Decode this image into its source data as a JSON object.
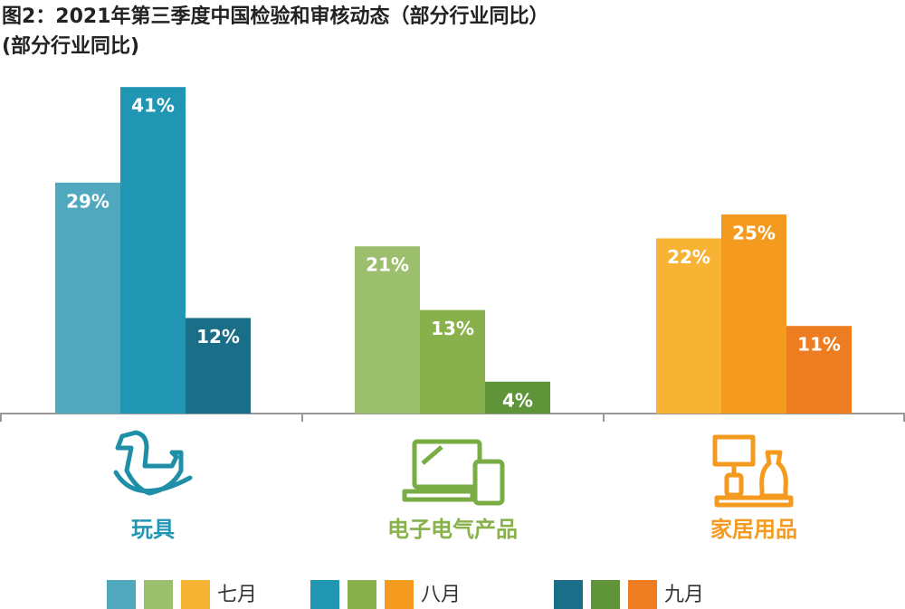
{
  "chart_data": {
    "type": "bar",
    "title": "图2：2021年第三季度中国检验和审核动态（部分行业同比）",
    "subtitle": "(部分行业同比)",
    "categories": [
      "玩具",
      "电子电气产品",
      "家居用品"
    ],
    "series": [
      {
        "name": "七月",
        "colors": [
          "#4fa8bd",
          "#9cbf6e",
          "#f7b334"
        ],
        "values": [
          29,
          21,
          22
        ],
        "value_labels": [
          "29%",
          "21%",
          "22%"
        ]
      },
      {
        "name": "八月",
        "colors": [
          "#2196b3",
          "#88b04b",
          "#f49a1f"
        ],
        "values": [
          41,
          13,
          25
        ],
        "value_labels": [
          "41%",
          "13%",
          "25%"
        ]
      },
      {
        "name": "九月",
        "colors": [
          "#1a6e87",
          "#5f9438",
          "#ee7d22"
        ],
        "values": [
          12,
          4,
          11
        ],
        "value_labels": [
          "12%",
          "4%",
          "11%"
        ]
      }
    ]
  }
}
